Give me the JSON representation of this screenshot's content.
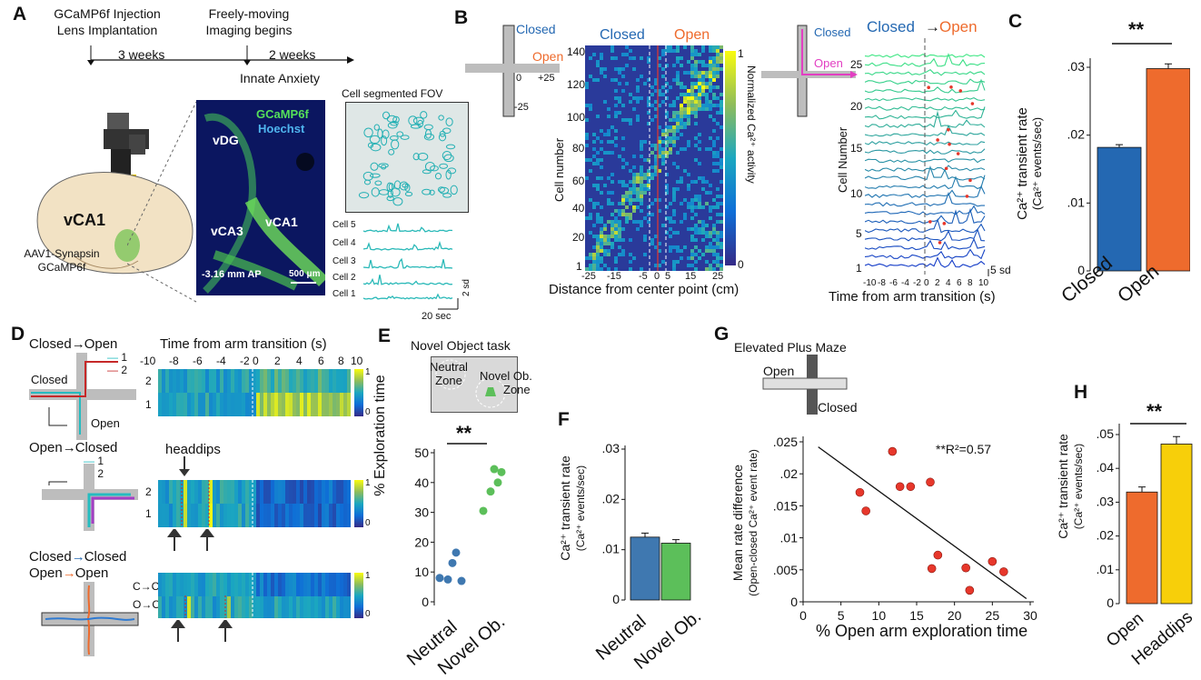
{
  "colors": {
    "closed": "#2468b2",
    "open": "#ee6b2d",
    "neutral": "#3f78b0",
    "novel": "#5cbf5a",
    "headdips": "#f7cf0a",
    "cyan": "#25bcc0",
    "ptred": "#e7372b"
  },
  "panelA": {
    "letter": "A",
    "tl_step1_l1": "GCaMP6f Injection",
    "tl_step1_l2": "Lens Implantation",
    "tl_gap1": "3 weeks",
    "tl_step2_l1": "Freely-moving",
    "tl_step2_l2": "Imaging begins",
    "tl_gap2": "2 weeks",
    "tl_end": "Innate Anxiety",
    "brain_label": "vCA1",
    "virus_l1": "AAV1-Synapsin",
    "virus_l2": "GCaMP6f",
    "img_gcamp": "GCaMP6f",
    "img_hoechst": "Hoechst",
    "img_vdg": "vDG",
    "img_vca3": "vCA3",
    "img_vca1": "vCA1",
    "img_ap": "-3.16 mm AP",
    "img_scale": "500 μm",
    "fov_title": "Cell segmented FOV",
    "cells": [
      "Cell 5",
      "Cell 4",
      "Cell 3",
      "Cell 2",
      "Cell 1"
    ],
    "sd": "2 sd",
    "sec": "20 sec"
  },
  "panelB": {
    "letter": "B",
    "closed": "Closed",
    "open": "Open",
    "tick_pos": "+25",
    "tick_zero": "0",
    "tick_neg": "-25",
    "ylabel": "Cell number",
    "xlabel": "Distance from center point (cm)",
    "yticks": [
      "140",
      "120",
      "100",
      "80",
      "60",
      "40",
      "20",
      "1"
    ],
    "xticks": [
      "-25",
      "-15",
      "-5",
      "0",
      "5",
      "15",
      "25"
    ],
    "cbar_label": "Normalized Ca²⁺ activity",
    "cbar_max": "1",
    "cbar_min": "0",
    "r_title_closed": "Closed",
    "r_title_open": "Open",
    "r_arrow": "→",
    "r_ylabel": "Cell Number",
    "r_xlabel": "Time from arm transition (s)",
    "r_yticks": [
      "25",
      "20",
      "15",
      "10",
      "5",
      "1"
    ],
    "r_xticks": [
      "-10",
      "-8",
      "-6",
      "-4",
      "-2",
      "0",
      "2",
      "4",
      "6",
      "8",
      "10"
    ],
    "r_sd": "5 sd"
  },
  "panelC": {
    "letter": "C",
    "sig": "**",
    "ylabel_l1": "Ca²⁺ transient rate",
    "ylabel_l2": "(Ca²⁺ events/sec)"
  },
  "panelD": {
    "letter": "D",
    "row1_title_a": "Closed",
    "row1_title_b": "Open",
    "row1_closed": "Closed",
    "row1_open": "Open",
    "row1_l1": "1",
    "row1_l2": "2",
    "row2_title_a": "Open",
    "row2_title_b": "Closed",
    "row2_l1": "1",
    "row2_l2": "2",
    "headdips": "headdips",
    "row3_title_a1": "Closed",
    "row3_title_b1": "Closed",
    "row3_title_a2": "Open",
    "row3_title_b2": "Open",
    "row3_cc": "C→C",
    "row3_oo": "O→O",
    "xaxis_title": "Time from arm transition (s)",
    "xticks": [
      "-10",
      "-8",
      "-6",
      "-4",
      "-2",
      "0",
      "2",
      "4",
      "6",
      "8",
      "10"
    ],
    "cbar_max": "1",
    "cbar_min": "0"
  },
  "panelE": {
    "letter": "E",
    "title": "Novel Object task",
    "neutral_zone_l1": "Neutral",
    "neutral_zone_l2": "Zone",
    "novel_zone_l1": "Novel Ob.",
    "novel_zone_l2": "Zone",
    "sig": "**",
    "ylabel": "% Exploration time"
  },
  "panelF": {
    "letter": "F",
    "ylabel_l1": "Ca²⁺ transient rate",
    "ylabel_l2": "(Ca²⁺ events/sec)"
  },
  "panelG": {
    "letter": "G",
    "title": "Elevated Plus Maze",
    "open": "Open",
    "closed": "Closed",
    "r2": "**R²=0.57",
    "ylabel_l1": "Mean rate difference",
    "ylabel_l2": "(Open-closed Ca²⁺ event rate)"
  },
  "panelH": {
    "letter": "H",
    "sig": "**",
    "ylabel_l1": "Ca²⁺ transient rate",
    "ylabel_l2": "(Ca²⁺ events/sec)"
  },
  "chart_data": [
    {
      "id": "C",
      "type": "bar",
      "categories": [
        "Closed",
        "Open"
      ],
      "values": [
        0.0182,
        0.0298
      ],
      "errors": [
        0.0004,
        0.0007
      ],
      "ylim": [
        0,
        0.03
      ],
      "yticks": [
        "0",
        ".01",
        ".02",
        ".03"
      ],
      "ylabel": "Ca²⁺ transient rate (Ca²⁺ events/sec)"
    },
    {
      "id": "E",
      "type": "scatter",
      "categories": [
        "Neutral",
        "Novel Ob."
      ],
      "series": [
        {
          "name": "Neutral",
          "values": [
            8,
            7.5,
            13,
            16.5,
            7
          ]
        },
        {
          "name": "Novel Ob.",
          "values": [
            44.5,
            30.5,
            37,
            40,
            43.5
          ]
        }
      ],
      "ylim": [
        0,
        50
      ],
      "yticks": [
        "0",
        "10",
        "20",
        "30",
        "40",
        "50"
      ],
      "ylabel": "% Exploration time"
    },
    {
      "id": "F",
      "type": "bar",
      "categories": [
        "Neutral",
        "Novel Ob."
      ],
      "values": [
        0.0125,
        0.0113
      ],
      "errors": [
        0.0008,
        0.0007
      ],
      "ylim": [
        0,
        0.03
      ],
      "yticks": [
        "0",
        ".01",
        ".02",
        ".03"
      ],
      "ylabel": "Ca²⁺ transient rate (Ca²⁺ events/sec)"
    },
    {
      "id": "G",
      "type": "scatter",
      "x": [
        7.5,
        8.3,
        11.8,
        12.8,
        14.2,
        16.8,
        17,
        17.8,
        21.5,
        22,
        25,
        26.5
      ],
      "y": [
        0.0171,
        0.0142,
        0.0235,
        0.018,
        0.018,
        0.0187,
        0.0052,
        0.0073,
        0.0053,
        0.0018,
        0.0063,
        0.0047
      ],
      "fit": {
        "x": [
          2,
          29.5
        ],
        "y": [
          0.0242,
          0.0005
        ]
      },
      "xlim": [
        0,
        30
      ],
      "ylim": [
        0,
        0.025
      ],
      "xticks": [
        "0",
        "5",
        "10",
        "15",
        "20",
        "25",
        "30"
      ],
      "yticks": [
        "0",
        ".005",
        ".01",
        ".015",
        ".02",
        ".025"
      ],
      "xlabel": "% Open arm exploration time",
      "ylabel": "Mean rate difference (Open-closed Ca²⁺ event rate)"
    },
    {
      "id": "H",
      "type": "bar",
      "categories": [
        "Open",
        "Headdips"
      ],
      "values": [
        0.033,
        0.0472
      ],
      "errors": [
        0.0015,
        0.0022
      ],
      "ylim": [
        0,
        0.05
      ],
      "yticks": [
        "0",
        ".01",
        ".02",
        ".03",
        ".04",
        ".05"
      ],
      "ylabel": "Ca²⁺ transient rate (Ca²⁺ events/sec)"
    }
  ]
}
